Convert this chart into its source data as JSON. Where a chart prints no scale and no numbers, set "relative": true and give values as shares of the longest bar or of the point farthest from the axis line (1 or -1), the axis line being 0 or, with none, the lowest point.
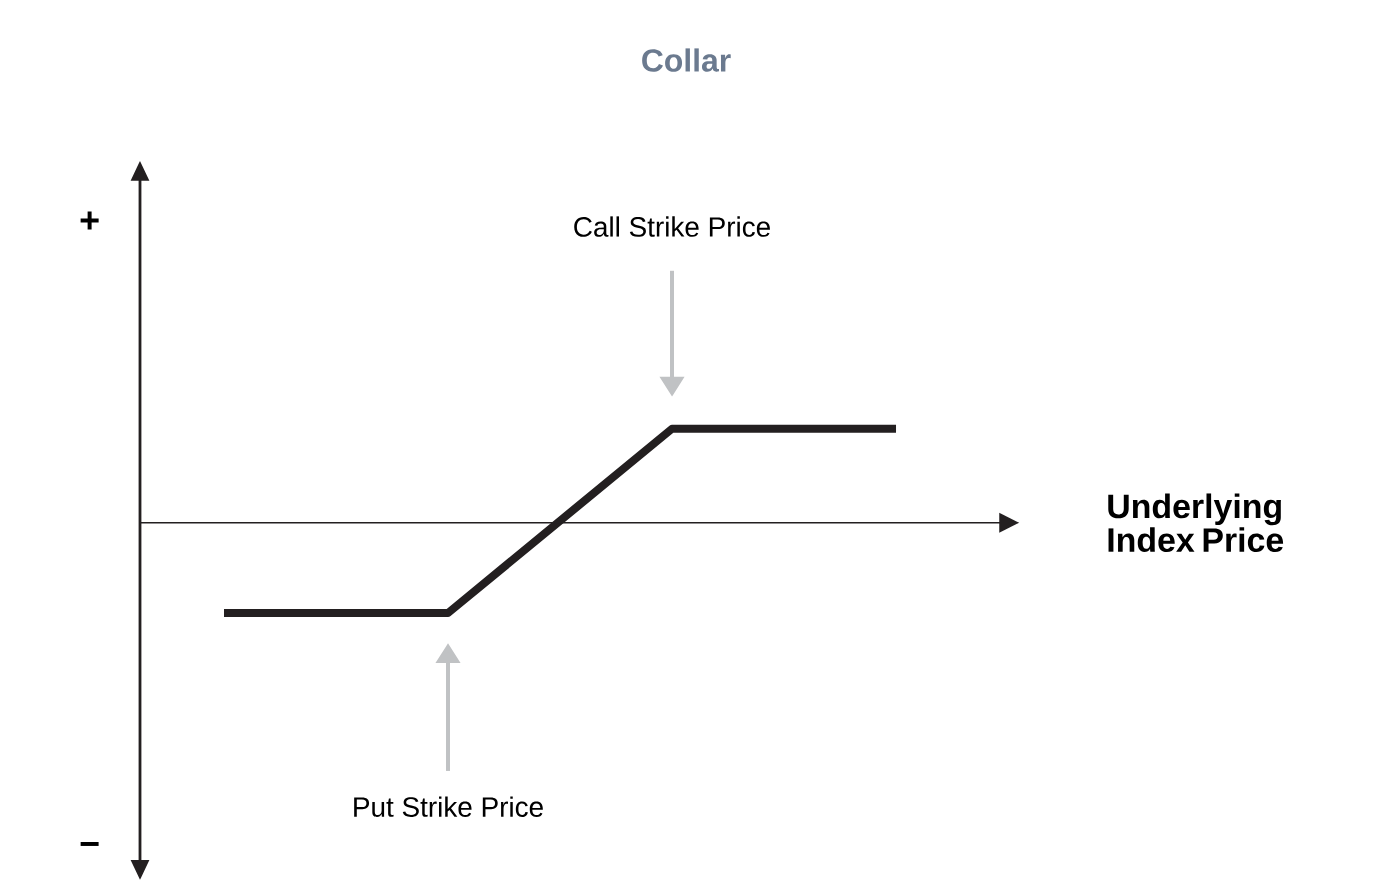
{
  "chart_data": {
    "type": "line",
    "title": "Collar",
    "xlabel": "Underlying Index Price",
    "categories": [
      null,
      null,
      null,
      null
    ],
    "values": [
      -0.96,
      -0.96,
      1,
      1
    ],
    "color": "#231f20",
    "relative": true,
    "annotations": [
      "Call Strike Price",
      "Put Strike Price",
      "+",
      "−"
    ]
  }
}
